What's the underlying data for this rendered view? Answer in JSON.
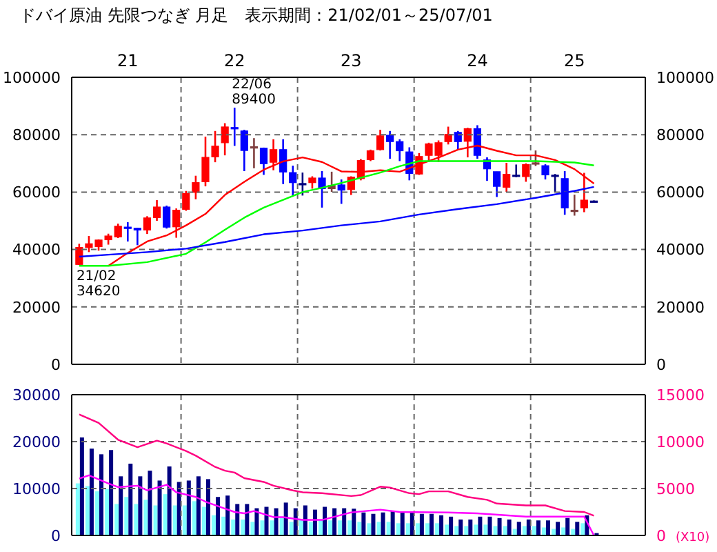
{
  "chart_data": [
    {
      "type": "candlestick",
      "title": "ドバイ原油 先限つなぎ 月足　表示期間：21/02/01～25/07/01",
      "x": [
        "2021-02",
        "2021-03",
        "2021-04",
        "2021-05",
        "2021-06",
        "2021-07",
        "2021-08",
        "2021-09",
        "2021-10",
        "2021-11",
        "2021-12",
        "2022-01",
        "2022-02",
        "2022-03",
        "2022-04",
        "2022-05",
        "2022-06",
        "2022-07",
        "2022-08",
        "2022-09",
        "2022-10",
        "2022-11",
        "2022-12",
        "2023-01",
        "2023-02",
        "2023-03",
        "2023-04",
        "2023-05",
        "2023-06",
        "2023-07",
        "2023-08",
        "2023-09",
        "2023-10",
        "2023-11",
        "2023-12",
        "2024-01",
        "2024-02",
        "2024-03",
        "2024-04",
        "2024-05",
        "2024-06",
        "2024-07",
        "2024-08",
        "2024-09",
        "2024-10",
        "2024-11",
        "2024-12",
        "2025-01",
        "2025-02",
        "2025-03",
        "2025-04",
        "2025-05",
        "2025-06",
        "2025-07"
      ],
      "ohlc": [
        [
          34800,
          42000,
          34620,
          40700
        ],
        [
          40700,
          44700,
          39100,
          42000
        ],
        [
          41000,
          43500,
          39600,
          43300
        ],
        [
          43400,
          45500,
          41700,
          44700
        ],
        [
          44400,
          49000,
          44000,
          48100
        ],
        [
          47800,
          49500,
          42800,
          47400
        ],
        [
          47400,
          47600,
          41500,
          46800
        ],
        [
          46800,
          51600,
          45400,
          51000
        ],
        [
          51100,
          57200,
          50000,
          54800
        ],
        [
          54800,
          55300,
          47300,
          47800
        ],
        [
          47900,
          54300,
          44100,
          53700
        ],
        [
          54000,
          60400,
          53500,
          59500
        ],
        [
          59900,
          65700,
          57500,
          63300
        ],
        [
          63600,
          79300,
          62000,
          72100
        ],
        [
          72300,
          81300,
          70400,
          76000
        ],
        [
          77200,
          84000,
          72800,
          82700
        ],
        [
          82500,
          89400,
          76100,
          82200
        ],
        [
          81300,
          81700,
          67300,
          74500
        ],
        [
          75500,
          78800,
          68300,
          75800
        ],
        [
          75300,
          75500,
          66000,
          69900
        ],
        [
          70400,
          78400,
          67600,
          74800
        ],
        [
          74800,
          78400,
          62800,
          67000
        ],
        [
          66800,
          69200,
          58800,
          63300
        ],
        [
          63000,
          66800,
          58800,
          62800
        ],
        [
          63300,
          65500,
          61200,
          64900
        ],
        [
          64900,
          67300,
          54600,
          61200
        ],
        [
          61200,
          67100,
          60100,
          62300
        ],
        [
          62500,
          64400,
          55900,
          60700
        ],
        [
          60900,
          65500,
          59000,
          65200
        ],
        [
          64700,
          71500,
          64100,
          71000
        ],
        [
          71300,
          74800,
          70800,
          74400
        ],
        [
          74800,
          81700,
          74500,
          79600
        ],
        [
          79800,
          81300,
          71600,
          77600
        ],
        [
          77600,
          78400,
          70800,
          74400
        ],
        [
          74000,
          75600,
          64100,
          66500
        ],
        [
          66300,
          73600,
          66000,
          72400
        ],
        [
          72800,
          77200,
          70500,
          76800
        ],
        [
          72800,
          78000,
          70500,
          77200
        ],
        [
          77600,
          82800,
          76600,
          80100
        ],
        [
          80800,
          81300,
          74800,
          77600
        ],
        [
          77700,
          82400,
          72100,
          82100
        ],
        [
          82100,
          83300,
          71600,
          72800
        ],
        [
          71200,
          72100,
          63900,
          68100
        ],
        [
          67100,
          67100,
          58300,
          62000
        ],
        [
          61700,
          70200,
          60100,
          66200
        ],
        [
          65900,
          69600,
          65200,
          65700
        ],
        [
          65400,
          70000,
          63600,
          69600
        ],
        [
          69800,
          74500,
          69100,
          70200
        ],
        [
          69200,
          69700,
          64400,
          66000
        ],
        [
          65900,
          66300,
          59900,
          65700
        ],
        [
          64700,
          67300,
          52100,
          54500
        ],
        [
          53400,
          59100,
          51800,
          53700
        ],
        [
          54500,
          66700,
          53000,
          57200
        ],
        [
          56900,
          57100,
          56600,
          56700
        ]
      ],
      "colors": [
        "#ff0000",
        "#ff0000",
        "#ff0000",
        "#ff0000",
        "#ff0000",
        "#0000ff",
        "#0000ff",
        "#ff0000",
        "#ff0000",
        "#0000ff",
        "#ff0000",
        "#ff0000",
        "#ff0000",
        "#ff0000",
        "#ff0000",
        "#ff0000",
        "#0000ff",
        "#0000ff",
        "#804040",
        "#0000ff",
        "#ff0000",
        "#0000ff",
        "#0000ff",
        "#000080",
        "#ff0000",
        "#0000ff",
        "#804040",
        "#0000ff",
        "#ff0000",
        "#ff0000",
        "#ff0000",
        "#ff0000",
        "#0000ff",
        "#0000ff",
        "#0000ff",
        "#ff0000",
        "#ff0000",
        "#ff0000",
        "#ff0000",
        "#0000ff",
        "#ff0000",
        "#0000ff",
        "#0000ff",
        "#0000ff",
        "#ff0000",
        "#000080",
        "#ff0000",
        "#804040",
        "#0000ff",
        "#000080",
        "#0000ff",
        "#804040",
        "#ff0000",
        "#000080"
      ],
      "series": [
        {
          "type": "line",
          "color": "#ff0000",
          "x": [
            "2021-05",
            "2021-07",
            "2021-09",
            "2021-11",
            "2022-01",
            "2022-03",
            "2022-05",
            "2022-07",
            "2022-09",
            "2022-11",
            "2023-01",
            "2023-03",
            "2023-05",
            "2023-07",
            "2023-09",
            "2023-11",
            "2024-01",
            "2024-03",
            "2024-05",
            "2024-07",
            "2024-09",
            "2024-11",
            "2025-01",
            "2025-03",
            "2025-05",
            "2025-07"
          ],
          "values": [
            34300,
            38800,
            42800,
            44900,
            48400,
            52400,
            59000,
            63600,
            67800,
            70700,
            72100,
            70500,
            67200,
            67000,
            67600,
            67100,
            69600,
            72000,
            74800,
            76200,
            74400,
            72800,
            72800,
            71200,
            68000,
            63000
          ]
        },
        {
          "type": "line",
          "color": "#00ff00",
          "x": [
            "2021-02",
            "2021-05",
            "2021-09",
            "2022-01",
            "2022-03",
            "2022-05",
            "2022-07",
            "2022-09",
            "2022-11",
            "2023-01",
            "2023-03",
            "2023-05",
            "2023-07",
            "2023-09",
            "2023-11",
            "2024-01",
            "2024-05",
            "2024-09",
            "2025-01",
            "2025-05",
            "2025-07"
          ],
          "values": [
            34300,
            34300,
            35600,
            38500,
            42500,
            46900,
            51100,
            54600,
            57300,
            60000,
            61500,
            63200,
            65000,
            66800,
            69000,
            70800,
            70800,
            70800,
            70800,
            70300,
            69300
          ]
        },
        {
          "type": "line",
          "color": "#0000ff",
          "x": [
            "2021-02",
            "2021-05",
            "2021-09",
            "2022-01",
            "2022-05",
            "2022-09",
            "2023-01",
            "2023-05",
            "2023-09",
            "2024-01",
            "2024-05",
            "2024-09",
            "2025-01",
            "2025-05",
            "2025-07"
          ],
          "values": [
            37500,
            38200,
            39100,
            40300,
            42600,
            45300,
            46600,
            48400,
            49800,
            52200,
            54100,
            55800,
            58000,
            60400,
            61800
          ]
        }
      ],
      "xlim": [
        "2021-01-08",
        "2025-12-10"
      ],
      "xticks": [
        {
          "value": "2021-07",
          "label": "21"
        },
        {
          "value": "2021-12-16",
          "label": null
        },
        {
          "value": "2022-06",
          "label": "22"
        },
        {
          "value": "2022-12-16",
          "label": null
        },
        {
          "value": "2023-06",
          "label": "23"
        },
        {
          "value": "2023-12-16",
          "label": null
        },
        {
          "value": "2024-07",
          "label": "24"
        },
        {
          "value": "2024-12-16",
          "label": null
        },
        {
          "value": "2025-05",
          "label": "25"
        }
      ],
      "ylim": [
        0,
        100000
      ],
      "yticks": [
        0,
        20000,
        40000,
        60000,
        80000,
        100000
      ],
      "y2lim": [
        0,
        100000
      ],
      "y2ticks": [
        0,
        20000,
        40000,
        60000,
        80000,
        100000
      ],
      "grid": true,
      "annotations": [
        {
          "text": "22/06 89400",
          "x": "2022-06",
          "y": 89400
        },
        {
          "text": "21/02 34620",
          "x": "2021-02",
          "y": 34620
        }
      ]
    },
    {
      "type": "bar",
      "x": [
        "2021-02",
        "2021-03",
        "2021-04",
        "2021-05",
        "2021-06",
        "2021-07",
        "2021-08",
        "2021-09",
        "2021-10",
        "2021-11",
        "2021-12",
        "2022-01",
        "2022-02",
        "2022-03",
        "2022-04",
        "2022-05",
        "2022-06",
        "2022-07",
        "2022-08",
        "2022-09",
        "2022-10",
        "2022-11",
        "2022-12",
        "2023-01",
        "2023-02",
        "2023-03",
        "2023-04",
        "2023-05",
        "2023-06",
        "2023-07",
        "2023-08",
        "2023-09",
        "2023-10",
        "2023-11",
        "2023-12",
        "2024-01",
        "2024-02",
        "2024-03",
        "2024-04",
        "2024-05",
        "2024-06",
        "2024-07",
        "2024-08",
        "2024-09",
        "2024-10",
        "2024-11",
        "2024-12",
        "2025-01",
        "2025-02",
        "2025-03",
        "2025-04",
        "2025-05",
        "2025-06",
        "2025-07"
      ],
      "series": [
        {
          "color": "#80ffff",
          "values": [
            11100,
            10500,
            9400,
            9900,
            6700,
            8200,
            6700,
            7600,
            6400,
            8800,
            6400,
            6400,
            7300,
            6100,
            4300,
            4000,
            3400,
            3400,
            2900,
            3200,
            3200,
            3700,
            2900,
            3400,
            2900,
            3400,
            3200,
            3200,
            3200,
            2900,
            2600,
            2900,
            2900,
            2600,
            2600,
            2600,
            2600,
            2600,
            2300,
            2000,
            2000,
            2300,
            2300,
            2000,
            2000,
            1400,
            2000,
            2000,
            1700,
            1400,
            1700,
            1400,
            2600,
            null
          ]
        },
        {
          "color": "#000080",
          "values": [
            20900,
            18500,
            17300,
            18200,
            12600,
            15300,
            12600,
            13800,
            11700,
            14700,
            11400,
            11700,
            12600,
            12000,
            8200,
            8500,
            6700,
            6700,
            5800,
            6100,
            5800,
            7000,
            5800,
            6400,
            5500,
            6100,
            5800,
            5800,
            5700,
            4900,
            4600,
            4900,
            5200,
            4900,
            4900,
            4600,
            4600,
            4300,
            4000,
            3400,
            3400,
            4000,
            4000,
            3700,
            3400,
            2900,
            3400,
            3200,
            3200,
            2900,
            3700,
            2900,
            4300,
            500
          ]
        },
        {
          "type": "line",
          "color": "#ff00ff",
          "x": [
            "2021-02",
            "2021-03",
            "2021-05",
            "2021-06",
            "2021-08",
            "2021-09",
            "2021-11",
            "2021-12",
            "2022-02",
            "2022-03",
            "2022-05",
            "2022-06",
            "2022-07",
            "2022-08",
            "2022-10",
            "2022-11",
            "2023-01",
            "2023-03",
            "2023-06",
            "2023-09",
            "2023-11",
            "2024-04",
            "2024-07",
            "2024-12",
            "2025-06",
            "2025-07"
          ],
          "values": [
            12100,
            12800,
            11100,
            10300,
            10600,
            9600,
            10800,
            9200,
            8200,
            7200,
            5700,
            5000,
            4700,
            5200,
            3900,
            3900,
            3300,
            3300,
            4900,
            5500,
            5000,
            4900,
            4700,
            4000,
            4000,
            0
          ]
        },
        {
          "type": "line",
          "axis": "y2",
          "color": "#ff0080",
          "x": [
            "2021-02",
            "2021-04",
            "2021-06",
            "2021-08",
            "2021-10",
            "2021-11",
            "2022-01",
            "2022-02",
            "2022-04",
            "2022-05",
            "2022-06",
            "2022-07",
            "2022-09",
            "2022-10",
            "2022-12",
            "2023-01",
            "2023-03",
            "2023-06",
            "2023-07",
            "2023-09",
            "2023-10",
            "2023-12",
            "2024-01",
            "2024-02",
            "2024-04",
            "2024-06",
            "2024-08",
            "2024-09",
            "2024-12",
            "2025-02",
            "2025-04",
            "2025-06",
            "2025-07"
          ],
          "values": [
            12900,
            12000,
            10200,
            9400,
            10100,
            9800,
            9000,
            8500,
            7300,
            6900,
            6700,
            6100,
            5700,
            5300,
            4800,
            4600,
            4500,
            4200,
            4300,
            5200,
            5100,
            4500,
            4400,
            4700,
            4700,
            4100,
            3800,
            3400,
            3200,
            3200,
            2600,
            2500,
            2100
          ]
        }
      ],
      "xlim": [
        "2021-01-08",
        "2025-12-10"
      ],
      "xticks": [
        {
          "value": "2021-12-16",
          "label": null
        },
        {
          "value": "2022-12-16",
          "label": null
        },
        {
          "value": "2023-12-16",
          "label": null
        },
        {
          "value": "2024-12-16",
          "label": null
        }
      ],
      "ylim": [
        0,
        30000
      ],
      "yticks": [
        0,
        10000,
        20000,
        30000
      ],
      "y2lim": [
        0,
        15000
      ],
      "y2ticks": [
        0,
        5000,
        10000,
        15000
      ],
      "y2label": "(X10)",
      "grid": true,
      "tick_labels": "y"
    }
  ]
}
